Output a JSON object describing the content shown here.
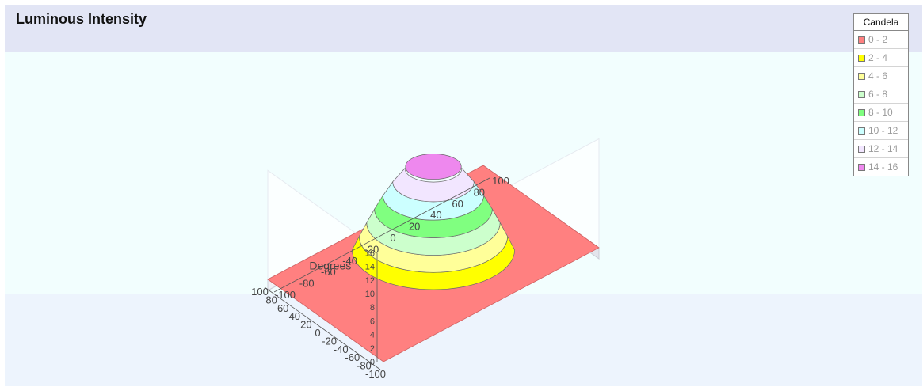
{
  "chart_data": {
    "type": "surface",
    "title": "Luminous Intensity",
    "xlabel": "Degrees",
    "ylabel": "",
    "zlabel": "",
    "x_ticks": [
      "-100",
      "-80",
      "-60",
      "-40",
      "-20",
      "0",
      "20",
      "40",
      "60",
      "80",
      "100"
    ],
    "y_ticks": [
      "-100",
      "-80",
      "-60",
      "-40",
      "-20",
      "0",
      "20",
      "40",
      "60",
      "80",
      "100"
    ],
    "z_ticks": [
      "0",
      "2",
      "4",
      "6",
      "8",
      "10",
      "12",
      "14",
      "16"
    ],
    "xlim": [
      -100,
      100
    ],
    "ylim": [
      -100,
      100
    ],
    "zlim": [
      0,
      16
    ],
    "legend_title": "Candela",
    "legend_position": "top-right",
    "bands": [
      {
        "label": "0 - 2",
        "min": 0,
        "max": 2,
        "color": "#ff8080"
      },
      {
        "label": "2 - 4",
        "min": 2,
        "max": 4,
        "color": "#ffff00"
      },
      {
        "label": "4 - 6",
        "min": 4,
        "max": 6,
        "color": "#ffff99"
      },
      {
        "label": "6 - 8",
        "min": 6,
        "max": 8,
        "color": "#ccffcc"
      },
      {
        "label": "8 - 10",
        "min": 8,
        "max": 10,
        "color": "#80ff80"
      },
      {
        "label": "10 - 12",
        "min": 10,
        "max": 12,
        "color": "#ccffff"
      },
      {
        "label": "12 - 14",
        "min": 12,
        "max": 14,
        "color": "#f2e6ff"
      },
      {
        "label": "14 - 16",
        "min": 14,
        "max": 16,
        "color": "#ee88ee"
      }
    ],
    "peak_value": 16,
    "peak_position": [
      0,
      0
    ],
    "grid": false
  }
}
